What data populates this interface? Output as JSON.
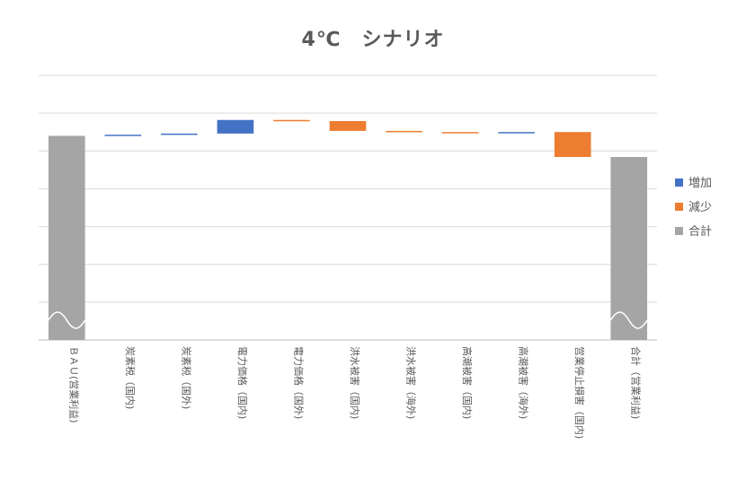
{
  "chart_data": {
    "type": "waterfall",
    "title": "4℃　シナリオ",
    "categories": [
      "ＢＡＵ(営業利益)",
      "炭素税（国内)",
      "炭素税（国外)",
      "電力価格（国内)",
      "電力価格（国外)",
      "洪水被害（国内)",
      "洪水被害（海外)",
      "高潮被害（国内)",
      "高潮被害（海外)",
      "営業停止損害（国内)",
      "合計（営業利益)"
    ],
    "series": [
      {
        "name": "増加",
        "color": "#4472C4"
      },
      {
        "name": "減少",
        "color": "#ED7D31"
      },
      {
        "name": "合計",
        "color": "#A5A5A5"
      }
    ],
    "bars": [
      {
        "kind": "total",
        "start": 0,
        "end": 5.4
      },
      {
        "kind": "increase",
        "start": 5.4,
        "end": 5.43
      },
      {
        "kind": "increase",
        "start": 5.43,
        "end": 5.46
      },
      {
        "kind": "increase",
        "start": 5.46,
        "end": 5.82
      },
      {
        "kind": "decrease",
        "start": 5.82,
        "end": 5.79
      },
      {
        "kind": "decrease",
        "start": 5.79,
        "end": 5.53
      },
      {
        "kind": "decrease",
        "start": 5.53,
        "end": 5.5
      },
      {
        "kind": "decrease",
        "start": 5.5,
        "end": 5.47
      },
      {
        "kind": "increase",
        "start": 5.47,
        "end": 5.5
      },
      {
        "kind": "decrease",
        "start": 5.5,
        "end": 4.84
      },
      {
        "kind": "total",
        "start": 0,
        "end": 4.84
      }
    ],
    "ylim": [
      0,
      7
    ],
    "grid": true,
    "legend_position": "right",
    "axis_break": true
  }
}
